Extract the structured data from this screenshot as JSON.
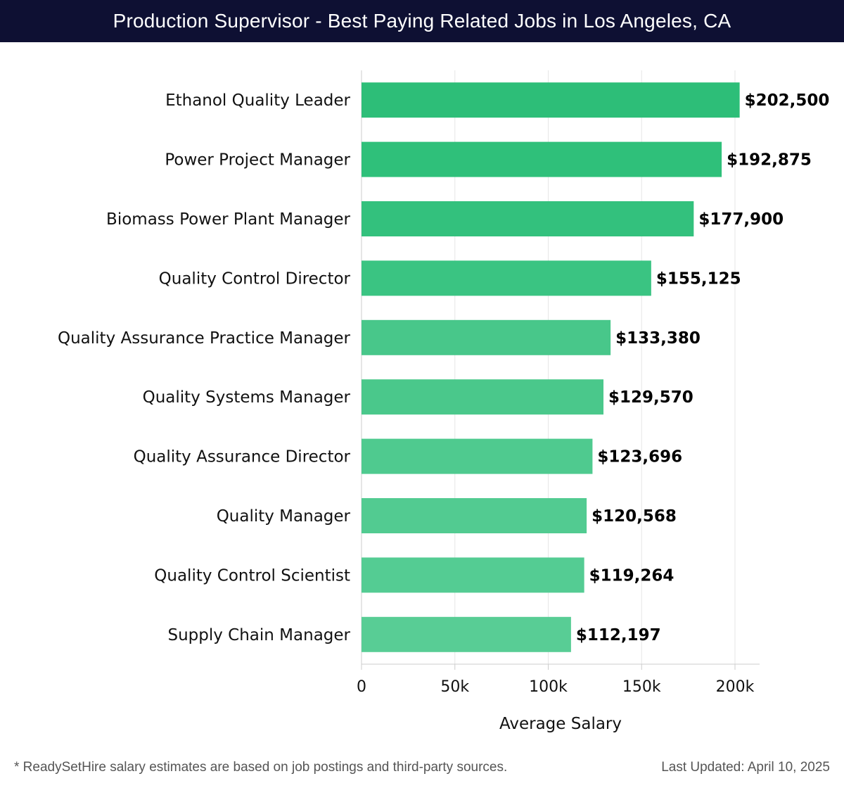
{
  "header": {
    "title": "Production Supervisor - Best Paying Related Jobs in Los Angeles, CA"
  },
  "chart_data": {
    "type": "bar",
    "orientation": "horizontal",
    "title": "Production Supervisor - Best Paying Related Jobs in Los Angeles, CA",
    "xlabel": "Average Salary",
    "ylabel": "",
    "xlim": [
      0,
      212000
    ],
    "grid": true,
    "x_ticks": [
      0,
      50000,
      100000,
      150000,
      200000
    ],
    "x_tick_labels": [
      "0",
      "50k",
      "100k",
      "150k",
      "200k"
    ],
    "categories": [
      "Ethanol Quality Leader",
      "Power Project Manager",
      "Biomass Power Plant Manager",
      "Quality Control Director",
      "Quality Assurance Practice Manager",
      "Quality Systems Manager",
      "Quality Assurance Director",
      "Quality Manager",
      "Quality Control Scientist",
      "Supply Chain Manager"
    ],
    "values": [
      202500,
      192875,
      177900,
      155125,
      133380,
      129570,
      123696,
      120568,
      119264,
      112197
    ],
    "value_labels": [
      "$202,500",
      "$192,875",
      "$177,900",
      "$155,125",
      "$133,380",
      "$129,570",
      "$123,696",
      "$120,568",
      "$119,264",
      "$112,197"
    ],
    "bar_colors": [
      "#2dbe78",
      "#2fc07a",
      "#33c17d",
      "#3ac482",
      "#48c78a",
      "#4ac88b",
      "#4fca8f",
      "#52cb91",
      "#54cc93",
      "#58cd95"
    ]
  },
  "footer": {
    "note": "* ReadySetHire salary estimates are based on job postings and third-party sources.",
    "updated": "Last Updated: April 10, 2025"
  }
}
